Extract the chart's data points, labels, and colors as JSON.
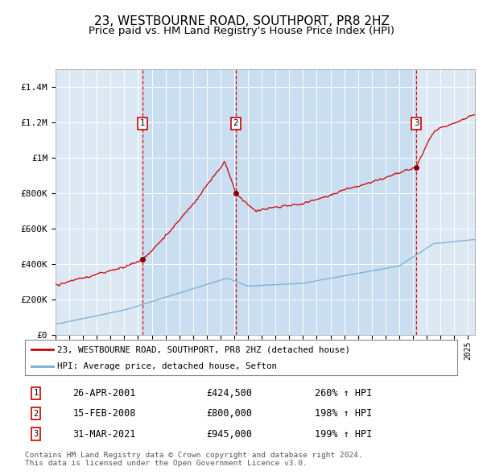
{
  "title": "23, WESTBOURNE ROAD, SOUTHPORT, PR8 2HZ",
  "subtitle": "Price paid vs. HM Land Registry's House Price Index (HPI)",
  "title_fontsize": 11,
  "subtitle_fontsize": 9.5,
  "ylim": [
    0,
    1500000
  ],
  "yticks": [
    0,
    200000,
    400000,
    600000,
    800000,
    1000000,
    1200000,
    1400000
  ],
  "ytick_labels": [
    "£0",
    "£200K",
    "£400K",
    "£600K",
    "£800K",
    "£1M",
    "£1.2M",
    "£1.4M"
  ],
  "background_color": "#ffffff",
  "plot_bg_color": "#dce9f5",
  "shade_color": "#b8d4ee",
  "grid_color": "#ffffff",
  "sale_line_color": "#cc0000",
  "hpi_line_color": "#7aadd4",
  "sale_marker_color": "#880000",
  "vline_color": "#cc0000",
  "marker_box_color": "#cc0000",
  "transactions": [
    {
      "label": "1",
      "date_x": 2001.32,
      "price": 424500,
      "hpi_pct": "260%",
      "date_str": "26-APR-2001"
    },
    {
      "label": "2",
      "date_x": 2008.12,
      "price": 800000,
      "hpi_pct": "198%",
      "date_str": "15-FEB-2008"
    },
    {
      "label": "3",
      "date_x": 2021.25,
      "price": 945000,
      "hpi_pct": "199%",
      "date_str": "31-MAR-2021"
    }
  ],
  "legend_label_sale": "23, WESTBOURNE ROAD, SOUTHPORT, PR8 2HZ (detached house)",
  "legend_label_hpi": "HPI: Average price, detached house, Sefton",
  "footnote": "Contains HM Land Registry data © Crown copyright and database right 2024.\nThis data is licensed under the Open Government Licence v3.0.",
  "xmin": 1995.0,
  "xmax": 2025.5
}
